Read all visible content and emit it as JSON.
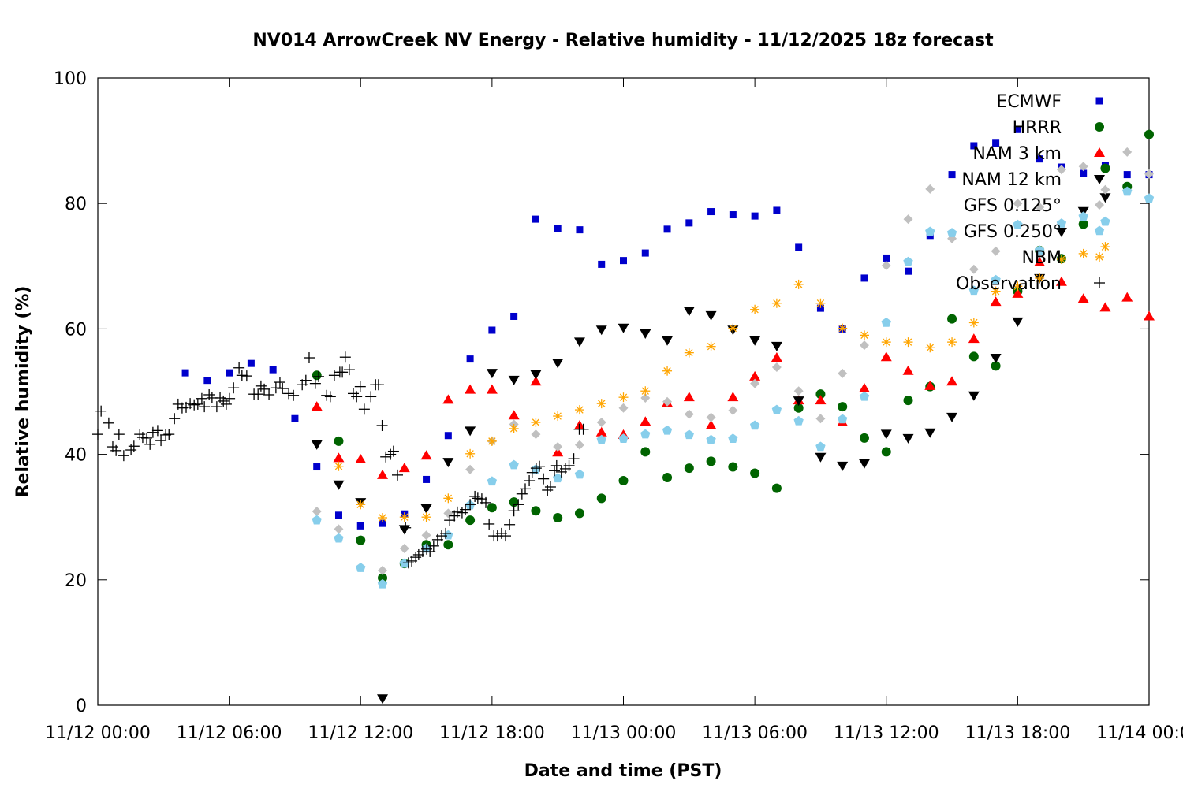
{
  "chart_data": {
    "type": "scatter",
    "title": "NV014 ArrowCreek NV Energy - Relative humidity - 11/12/2025 18z forecast",
    "xlabel": "Date and time (PST)",
    "ylabel": "Relative humidity (%)",
    "xlim": [
      "11/12 00:00",
      "11/14 00:00"
    ],
    "ylim": [
      0,
      100
    ],
    "yticks": [
      0,
      20,
      40,
      60,
      80,
      100
    ],
    "xticks": [
      "11/12 00:00",
      "11/12 06:00",
      "11/12 12:00",
      "11/12 18:00",
      "11/13 00:00",
      "11/13 06:00",
      "11/13 12:00",
      "11/13 18:00",
      "11/14 00:00"
    ],
    "grid": false,
    "legend_position": "top-right",
    "times": [
      "11/12 04:00",
      "11/12 05:00",
      "11/12 06:00",
      "11/12 07:00",
      "11/12 08:00",
      "11/12 09:00",
      "11/12 10:00",
      "11/12 11:00",
      "11/12 12:00",
      "11/12 13:00",
      "11/12 14:00",
      "11/12 15:00",
      "11/12 16:00",
      "11/12 17:00",
      "11/12 18:00",
      "11/12 19:00",
      "11/12 20:00",
      "11/12 21:00",
      "11/12 22:00",
      "11/12 23:00",
      "11/13 00:00",
      "11/13 01:00",
      "11/13 02:00",
      "11/13 03:00",
      "11/13 04:00",
      "11/13 05:00",
      "11/13 06:00",
      "11/13 07:00",
      "11/13 08:00",
      "11/13 09:00",
      "11/13 10:00",
      "11/13 11:00",
      "11/13 12:00",
      "11/13 13:00",
      "11/13 14:00",
      "11/13 15:00",
      "11/13 16:00",
      "11/13 17:00",
      "11/13 18:00",
      "11/13 19:00",
      "11/13 20:00",
      "11/13 21:00",
      "11/13 22:00",
      "11/13 23:00",
      "11/14 00:00"
    ],
    "series": [
      {
        "name": "ECMWF",
        "marker": "square",
        "color": "#0000cc",
        "values": [
          53,
          51.8,
          53,
          54.5,
          53.5,
          45.7,
          38,
          30.3,
          28.6,
          29,
          30.5,
          36,
          43,
          55.2,
          59.8,
          62,
          77.5,
          76,
          75.8,
          70.3,
          70.9,
          72.1,
          75.9,
          76.9,
          78.7,
          78.2,
          78,
          78.9,
          73,
          63.3,
          60,
          68.1,
          71.3,
          69.2,
          74.9,
          84.6,
          89.2,
          89.6,
          91.8,
          87.1,
          85.8,
          84.8,
          86,
          84.6,
          84.6
        ]
      },
      {
        "name": "HRRR",
        "marker": "circle",
        "color": "#006400",
        "values": [
          null,
          null,
          null,
          null,
          null,
          null,
          52.6,
          42.1,
          26.3,
          20.3,
          22.6,
          25.6,
          25.6,
          29.5,
          31.5,
          32.4,
          31,
          29.9,
          30.6,
          33,
          35.8,
          40.4,
          36.3,
          37.8,
          38.9,
          38,
          37,
          34.6,
          47.4,
          49.6,
          47.6,
          42.6,
          40.4,
          48.6,
          50.8,
          61.6,
          55.6,
          54.1,
          66,
          72.5,
          71.2,
          76.7,
          85.6,
          82.7,
          91
        ]
      },
      {
        "name": "NAM 3 km",
        "marker": "triangle-up",
        "color": "#ff0000",
        "values": [
          null,
          null,
          null,
          null,
          null,
          null,
          47.6,
          39.4,
          39.2,
          36.7,
          37.8,
          39.8,
          48.7,
          50.3,
          50.3,
          46.2,
          51.6,
          40.3,
          44.6,
          43.5,
          43.1,
          45.2,
          48.2,
          49.1,
          44.6,
          49.1,
          52.4,
          55.4,
          48.6,
          48.6,
          45.1,
          50.5,
          55.5,
          53.3,
          50.9,
          51.6,
          58.4,
          64.3,
          65.6,
          70.6,
          67.5,
          64.8,
          63.4,
          65,
          62
        ]
      },
      {
        "name": "NAM 12 km",
        "marker": "triangle-down",
        "color": "#000000",
        "values": [
          null,
          null,
          null,
          null,
          null,
          null,
          41.6,
          35.2,
          32.4,
          1.1,
          28.1,
          31.4,
          38.8,
          43.8,
          53,
          51.9,
          52.8,
          54.6,
          58,
          59.9,
          60.2,
          59.3,
          58.2,
          62.9,
          62.2,
          59.9,
          58.2,
          57.3,
          48.6,
          39.6,
          38.2,
          38.6,
          43.3,
          42.6,
          43.5,
          46,
          49.4,
          55.4,
          61.2,
          68.1,
          75.5,
          78.8,
          81,
          null,
          null
        ]
      },
      {
        "name": "GFS 0.125°",
        "marker": "diamond",
        "color": "#c0c0c0",
        "values": [
          null,
          null,
          null,
          null,
          null,
          null,
          30.9,
          28.1,
          22,
          21.5,
          25,
          27.1,
          30.6,
          37.6,
          42.1,
          44.8,
          43.2,
          41.2,
          41.5,
          45.1,
          47.4,
          49,
          48.4,
          46.4,
          45.9,
          47,
          51.3,
          53.9,
          50.1,
          45.7,
          52.9,
          57.4,
          70.1,
          77.5,
          82.3,
          74.4,
          69.5,
          72.4,
          80,
          79.4,
          85.4,
          85.9,
          82.2,
          88.2,
          84.7
        ]
      },
      {
        "name": "GFS 0.250°",
        "marker": "pentagon",
        "color": "#87ceeb",
        "values": [
          null,
          null,
          null,
          null,
          null,
          null,
          29.5,
          26.6,
          21.9,
          19.3,
          22.6,
          25,
          27.1,
          31.9,
          35.7,
          38.3,
          37.6,
          36.2,
          36.8,
          42.3,
          42.5,
          43.2,
          43.8,
          43.1,
          42.3,
          42.5,
          44.6,
          47.1,
          45.3,
          41.2,
          45.6,
          49.2,
          61,
          70.7,
          75.5,
          75.3,
          66.1,
          67.8,
          76.6,
          72.5,
          76.8,
          77.9,
          77.1,
          81.9,
          80.8
        ]
      },
      {
        "name": "NBM",
        "marker": "asterisk",
        "color": "#ffa500",
        "values": [
          null,
          null,
          null,
          null,
          null,
          null,
          null,
          38.1,
          32,
          29.9,
          30,
          30,
          33,
          40.1,
          42.1,
          44.1,
          45.1,
          46.1,
          47.1,
          48.1,
          49.1,
          50.1,
          53.3,
          56.2,
          57.2,
          60.1,
          63.1,
          64.1,
          67.1,
          64.1,
          60.1,
          59,
          57.9,
          57.9,
          57,
          57.9,
          61,
          66,
          66.8,
          68.1,
          71.1,
          72,
          73.1,
          null,
          null
        ]
      }
    ],
    "observation": {
      "name": "Observation",
      "marker": "plus",
      "color": "#000000",
      "points": [
        [
          "11/12 00:00",
          43.2
        ],
        [
          "11/12 00:09",
          46.9
        ],
        [
          "11/12 00:30",
          45
        ],
        [
          "11/12 00:41",
          41.2
        ],
        [
          "11/12 00:50",
          40.6
        ],
        [
          "11/12 00:58",
          43.2
        ],
        [
          "11/12 01:11",
          39.8
        ],
        [
          "11/12 01:31",
          40.7
        ],
        [
          "11/12 01:39",
          41.3
        ],
        [
          "11/12 01:55",
          43.2
        ],
        [
          "11/12 02:03",
          42.7
        ],
        [
          "11/12 02:14",
          42.6
        ],
        [
          "11/12 02:23",
          41.6
        ],
        [
          "11/12 02:31",
          43.5
        ],
        [
          "11/12 02:44",
          43.8
        ],
        [
          "11/12 02:53",
          42.2
        ],
        [
          "11/12 03:06",
          43.1
        ],
        [
          "11/12 03:15",
          43.2
        ],
        [
          "11/12 03:30",
          45.7
        ],
        [
          "11/12 03:40",
          48
        ],
        [
          "11/12 03:51",
          47.4
        ],
        [
          "11/12 04:02",
          47.5
        ],
        [
          "11/12 04:13",
          48.1
        ],
        [
          "11/12 04:24",
          47.9
        ],
        [
          "11/12 04:34",
          48
        ],
        [
          "11/12 04:45",
          48.9
        ],
        [
          "11/12 04:52",
          47.6
        ],
        [
          "11/12 05:05",
          49.5
        ],
        [
          "11/12 05:13",
          49
        ],
        [
          "11/12 05:26",
          47.6
        ],
        [
          "11/12 05:35",
          49
        ],
        [
          "11/12 05:44",
          48.5
        ],
        [
          "11/12 05:52",
          48
        ],
        [
          "11/12 06:01",
          48.9
        ],
        [
          "11/12 06:12",
          50.6
        ],
        [
          "11/12 06:27",
          53.8
        ],
        [
          "11/12 06:35",
          52.6
        ],
        [
          "11/12 06:48",
          52.5
        ],
        [
          "11/12 07:08",
          49.6
        ],
        [
          "11/12 07:19",
          49.6
        ],
        [
          "11/12 07:27",
          50.9
        ],
        [
          "11/12 07:36",
          50.4
        ],
        [
          "11/12 07:49",
          49.5
        ],
        [
          "11/12 08:08",
          50.6
        ],
        [
          "11/12 08:19",
          51.5
        ],
        [
          "11/12 08:26",
          50.5
        ],
        [
          "11/12 08:43",
          49.7
        ],
        [
          "11/12 08:56",
          49.4
        ],
        [
          "11/12 09:20",
          51.1
        ],
        [
          "11/12 09:30",
          51.8
        ],
        [
          "11/12 09:39",
          55.4
        ],
        [
          "11/12 09:56",
          51.3
        ],
        [
          "11/12 10:05",
          52.4
        ],
        [
          "11/12 10:27",
          49.4
        ],
        [
          "11/12 10:37",
          49.2
        ],
        [
          "11/12 10:48",
          52.6
        ],
        [
          "11/12 11:03",
          53.1
        ],
        [
          "11/12 11:10",
          53.1
        ],
        [
          "11/12 11:18",
          55.5
        ],
        [
          "11/12 11:29",
          53.5
        ],
        [
          "11/12 11:40",
          49.7
        ],
        [
          "11/12 11:49",
          49.2
        ],
        [
          "11/12 11:59",
          50.8
        ],
        [
          "11/12 12:10",
          47.2
        ],
        [
          "11/12 12:28",
          49.2
        ],
        [
          "11/12 12:41",
          51.1
        ],
        [
          "11/12 12:49",
          51.1
        ],
        [
          "11/12 12:59",
          44.6
        ],
        [
          "11/12 13:09",
          39.6
        ],
        [
          "11/12 13:22",
          40
        ],
        [
          "11/12 13:30",
          40.5
        ],
        [
          "11/12 13:41",
          36.7
        ],
        [
          "11/12 14:03",
          28.3
        ],
        [
          "11/12 14:11",
          22.7
        ],
        [
          "11/12 14:20",
          23
        ],
        [
          "11/12 14:31",
          23.6
        ],
        [
          "11/12 14:39",
          24
        ],
        [
          "11/12 14:50",
          24.5
        ],
        [
          "11/12 15:01",
          24.9
        ],
        [
          "11/12 15:10",
          24.5
        ],
        [
          "11/12 15:20",
          25.4
        ],
        [
          "11/12 15:31",
          26.4
        ],
        [
          "11/12 15:42",
          27
        ],
        [
          "11/12 15:53",
          27.4
        ],
        [
          "11/12 16:04",
          29.5
        ],
        [
          "11/12 16:17",
          30.2
        ],
        [
          "11/12 16:25",
          30.8
        ],
        [
          "11/12 16:38",
          30.7
        ],
        [
          "11/12 16:47",
          31.2
        ],
        [
          "11/12 17:00",
          32
        ],
        [
          "11/12 17:13",
          33.3
        ],
        [
          "11/12 17:21",
          33
        ],
        [
          "11/12 17:32",
          32.9
        ],
        [
          "11/12 17:43",
          32.3
        ],
        [
          "11/12 17:52",
          28.9
        ],
        [
          "11/12 18:05",
          27
        ],
        [
          "11/12 18:15",
          27
        ],
        [
          "11/12 18:26",
          27.4
        ],
        [
          "11/12 18:37",
          27
        ],
        [
          "11/12 18:48",
          28.8
        ],
        [
          "11/12 19:00",
          31
        ],
        [
          "11/12 19:12",
          32
        ],
        [
          "11/12 19:22",
          33.7
        ],
        [
          "11/12 19:31",
          34.5
        ],
        [
          "11/12 19:42",
          35.8
        ],
        [
          "11/12 19:50",
          37.1
        ],
        [
          "11/12 20:01",
          37.8
        ],
        [
          "11/12 20:10",
          38.1
        ],
        [
          "11/12 20:21",
          36.1
        ],
        [
          "11/12 20:32",
          34.3
        ],
        [
          "11/12 20:40",
          34.8
        ],
        [
          "11/12 20:51",
          37.4
        ],
        [
          "11/12 20:57",
          38.2
        ],
        [
          "11/12 21:10",
          37.2
        ],
        [
          "11/12 21:21",
          37.7
        ],
        [
          "11/12 21:31",
          38.2
        ],
        [
          "11/12 21:44",
          39.3
        ],
        [
          "11/12 21:59",
          44
        ],
        [
          "11/12 22:10",
          44
        ]
      ]
    }
  }
}
